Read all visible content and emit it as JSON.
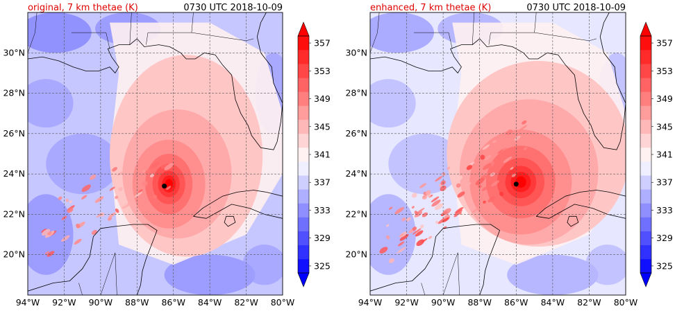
{
  "panels": [
    {
      "title": "original, 7 km thetae (K)",
      "time_label": "0730 UTC 2018-10-09",
      "center": {
        "lon": -86.5,
        "lat": 23.4
      }
    },
    {
      "title": "enhanced, 7 km thetae (K)",
      "time_label": "0730 UTC 2018-10-09",
      "center": {
        "lon": -86.0,
        "lat": 23.5
      }
    }
  ],
  "map": {
    "lon_range": [
      -94,
      -80
    ],
    "lat_range": [
      18,
      32
    ],
    "lon_ticks": [
      "94°W",
      "92°W",
      "90°W",
      "88°W",
      "86°W",
      "84°W",
      "82°W",
      "80°W"
    ],
    "lat_ticks": [
      "20°N",
      "22°N",
      "24°N",
      "26°N",
      "28°N",
      "30°N"
    ],
    "grid": true
  },
  "colorbar": {
    "vmin": 325,
    "vmax": 359,
    "labels": [
      "325",
      "329",
      "333",
      "337",
      "341",
      "345",
      "349",
      "353",
      "357"
    ],
    "extend": "both"
  },
  "colors": {
    "title_red": "#e00000",
    "land_line": "#000000",
    "grid_line": "#555555"
  }
}
